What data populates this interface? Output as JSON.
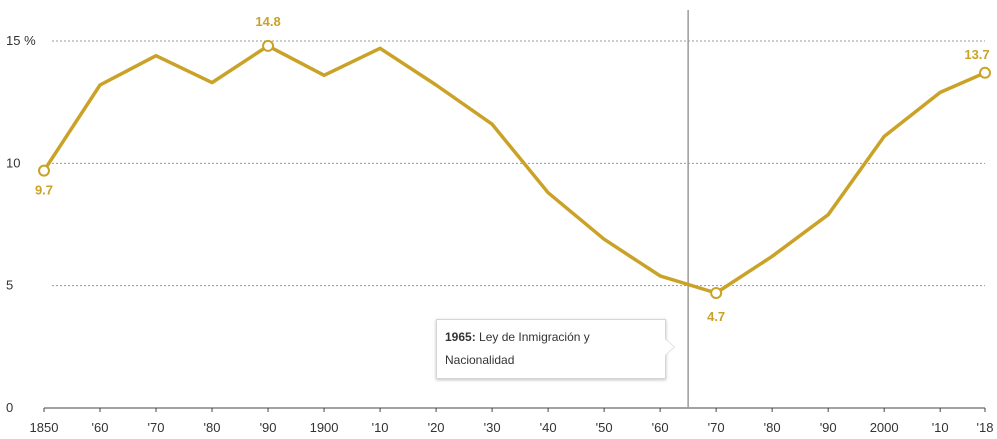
{
  "chart_data": {
    "type": "line",
    "x": [
      1850,
      1860,
      1870,
      1880,
      1890,
      1900,
      1910,
      1920,
      1930,
      1940,
      1950,
      1960,
      1970,
      1980,
      1990,
      2000,
      2010,
      2018
    ],
    "x_tick_labels": [
      "1850",
      "'60",
      "'70",
      "'80",
      "'90",
      "1900",
      "'10",
      "'20",
      "'30",
      "'40",
      "'50",
      "'60",
      "'70",
      "'80",
      "'90",
      "2000",
      "'10",
      "'18"
    ],
    "series": [
      {
        "values": [
          9.7,
          13.2,
          14.4,
          13.3,
          14.8,
          13.6,
          14.7,
          13.2,
          11.6,
          8.8,
          6.9,
          5.4,
          4.7,
          6.2,
          7.9,
          11.1,
          12.9,
          13.7
        ]
      }
    ],
    "y_tick_labels": [
      "0",
      "5",
      "10",
      "15 %"
    ],
    "y_ticks": [
      0,
      5,
      10,
      15
    ],
    "ylim": [
      0,
      15
    ],
    "xlim": [
      1850,
      2018
    ],
    "grid": "horizontal dotted",
    "color": "#c9a227",
    "annotations": [
      {
        "x": 1850,
        "y": 9.7,
        "label": "9.7"
      },
      {
        "x": 1890,
        "y": 14.8,
        "label": "14.8"
      },
      {
        "x": 1970,
        "y": 4.7,
        "label": "4.7"
      },
      {
        "x": 2018,
        "y": 13.7,
        "label": "13.7"
      }
    ],
    "event_line": {
      "x": 1965,
      "label_bold": "1965:",
      "label_line1": " Ley de Inmigración y",
      "label_line2": "Nacionalidad"
    }
  }
}
